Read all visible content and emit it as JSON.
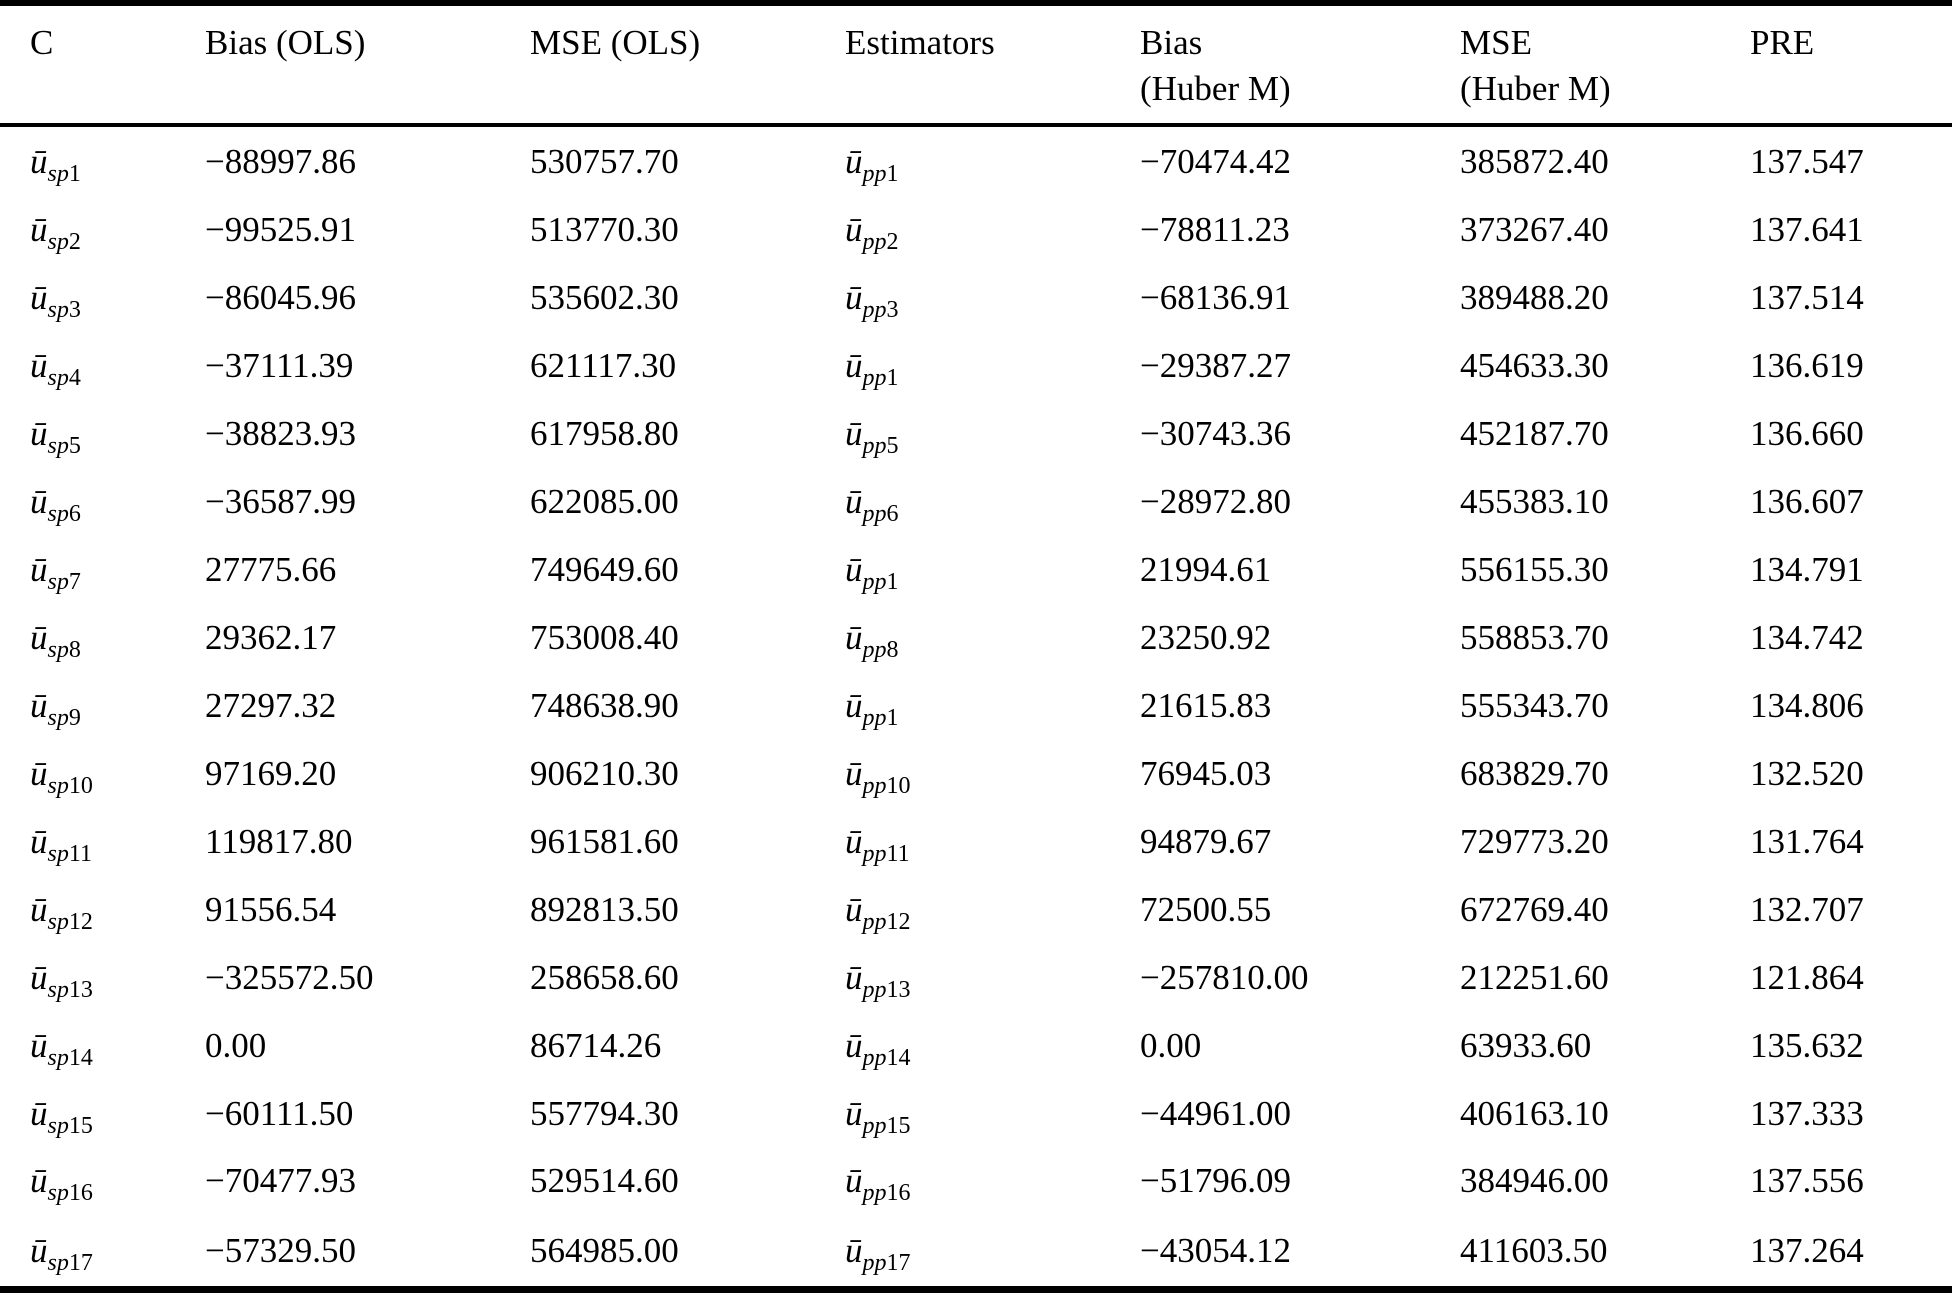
{
  "table": {
    "symbol": "ū",
    "headers": [
      {
        "line1": "C",
        "line2": ""
      },
      {
        "line1": "Bias (OLS)",
        "line2": ""
      },
      {
        "line1": "MSE (OLS)",
        "line2": ""
      },
      {
        "line1": "Estimators",
        "line2": ""
      },
      {
        "line1": "Bias",
        "line2": "(Huber M)"
      },
      {
        "line1": "MSE",
        "line2": "(Huber M)"
      },
      {
        "line1": "PRE",
        "line2": ""
      }
    ],
    "rows": [
      {
        "c": "sp1",
        "bias_ols": "−88997.86",
        "mse_ols": "530757.70",
        "est": "pp1",
        "bias_hm": "−70474.42",
        "mse_hm": "385872.40",
        "pre": "137.547"
      },
      {
        "c": "sp2",
        "bias_ols": "−99525.91",
        "mse_ols": "513770.30",
        "est": "pp2",
        "bias_hm": "−78811.23",
        "mse_hm": "373267.40",
        "pre": "137.641"
      },
      {
        "c": "sp3",
        "bias_ols": "−86045.96",
        "mse_ols": "535602.30",
        "est": "pp3",
        "bias_hm": "−68136.91",
        "mse_hm": "389488.20",
        "pre": "137.514"
      },
      {
        "c": "sp4",
        "bias_ols": "−37111.39",
        "mse_ols": "621117.30",
        "est": "pp1",
        "bias_hm": "−29387.27",
        "mse_hm": "454633.30",
        "pre": "136.619"
      },
      {
        "c": "sp5",
        "bias_ols": "−38823.93",
        "mse_ols": "617958.80",
        "est": "pp5",
        "bias_hm": "−30743.36",
        "mse_hm": "452187.70",
        "pre": "136.660"
      },
      {
        "c": "sp6",
        "bias_ols": "−36587.99",
        "mse_ols": "622085.00",
        "est": "pp6",
        "bias_hm": "−28972.80",
        "mse_hm": "455383.10",
        "pre": "136.607"
      },
      {
        "c": "sp7",
        "bias_ols": "27775.66",
        "mse_ols": "749649.60",
        "est": "pp1",
        "bias_hm": "21994.61",
        "mse_hm": "556155.30",
        "pre": "134.791"
      },
      {
        "c": "sp8",
        "bias_ols": "29362.17",
        "mse_ols": "753008.40",
        "est": "pp8",
        "bias_hm": "23250.92",
        "mse_hm": "558853.70",
        "pre": "134.742"
      },
      {
        "c": "sp9",
        "bias_ols": "27297.32",
        "mse_ols": "748638.90",
        "est": "pp1",
        "bias_hm": "21615.83",
        "mse_hm": "555343.70",
        "pre": "134.806"
      },
      {
        "c": "sp10",
        "bias_ols": "97169.20",
        "mse_ols": "906210.30",
        "est": "pp10",
        "bias_hm": "76945.03",
        "mse_hm": "683829.70",
        "pre": "132.520"
      },
      {
        "c": "sp11",
        "bias_ols": "119817.80",
        "mse_ols": "961581.60",
        "est": "pp11",
        "bias_hm": "94879.67",
        "mse_hm": "729773.20",
        "pre": "131.764"
      },
      {
        "c": "sp12",
        "bias_ols": "91556.54",
        "mse_ols": "892813.50",
        "est": "pp12",
        "bias_hm": "72500.55",
        "mse_hm": "672769.40",
        "pre": "132.707"
      },
      {
        "c": "sp13",
        "bias_ols": "−325572.50",
        "mse_ols": "258658.60",
        "est": "pp13",
        "bias_hm": "−257810.00",
        "mse_hm": "212251.60",
        "pre": "121.864"
      },
      {
        "c": "sp14",
        "bias_ols": "0.00",
        "mse_ols": "86714.26",
        "est": "pp14",
        "bias_hm": "0.00",
        "mse_hm": "63933.60",
        "pre": "135.632"
      },
      {
        "c": "sp15",
        "bias_ols": "−60111.50",
        "mse_ols": "557794.30",
        "est": "pp15",
        "bias_hm": "−44961.00",
        "mse_hm": "406163.10",
        "pre": "137.333"
      },
      {
        "c": "sp16",
        "bias_ols": "−70477.93",
        "mse_ols": "529514.60",
        "est": "pp16",
        "bias_hm": "−51796.09",
        "mse_hm": "384946.00",
        "pre": "137.556"
      },
      {
        "c": "sp17",
        "bias_ols": "−57329.50",
        "mse_ols": "564985.00",
        "est": "pp17",
        "bias_hm": "−43054.12",
        "mse_hm": "411603.50",
        "pre": "137.264"
      }
    ]
  }
}
